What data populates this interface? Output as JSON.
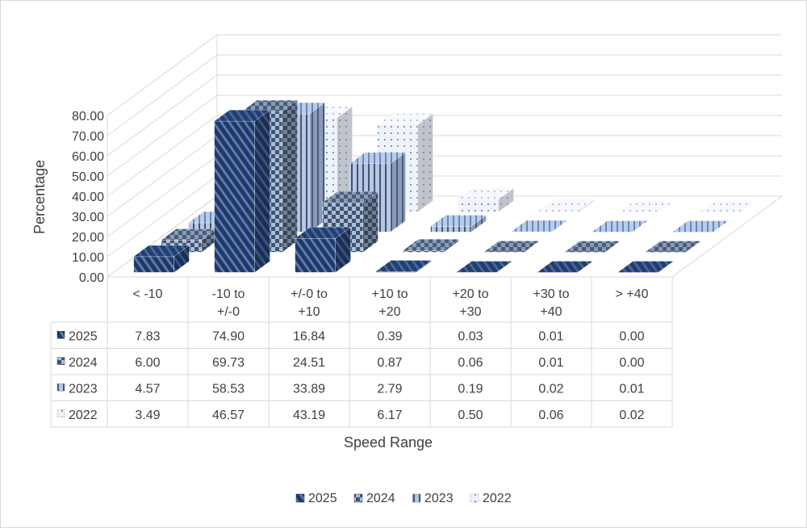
{
  "chart_data": {
    "type": "bar",
    "variant": "3d-column-with-data-table",
    "title": "",
    "xlabel": "Speed Range",
    "ylabel": "Percentage",
    "ylim": [
      0,
      80
    ],
    "yticks": [
      "0.00",
      "10.00",
      "20.00",
      "30.00",
      "40.00",
      "50.00",
      "60.00",
      "70.00",
      "80.00"
    ],
    "grid": true,
    "legend": "bottom",
    "categories": [
      [
        "< -10"
      ],
      [
        "-10 to",
        "+/-0"
      ],
      [
        "+/-0 to",
        "+10"
      ],
      [
        "+10 to",
        "+20"
      ],
      [
        "+20 to",
        "+30"
      ],
      [
        "+30 to",
        "+40"
      ],
      [
        "> +40"
      ]
    ],
    "series": [
      {
        "name": "2025",
        "color": "#1f3864",
        "pattern": "diagonal-stripes",
        "values": [
          7.83,
          74.9,
          16.84,
          0.39,
          0.03,
          0.01,
          0.0
        ],
        "labels": [
          "7.83",
          "74.90",
          "16.84",
          "0.39",
          "0.03",
          "0.01",
          "0.00"
        ]
      },
      {
        "name": "2024",
        "color": "#44546a",
        "pattern": "checkerboard",
        "values": [
          6.0,
          69.73,
          24.51,
          0.87,
          0.06,
          0.01,
          0.0
        ],
        "labels": [
          "6.00",
          "69.73",
          "24.51",
          "0.87",
          "0.06",
          "0.01",
          "0.00"
        ]
      },
      {
        "name": "2023",
        "color": "#8faadc",
        "pattern": "vertical-stripes",
        "values": [
          4.57,
          58.53,
          33.89,
          2.79,
          0.19,
          0.02,
          0.01
        ],
        "labels": [
          "4.57",
          "58.53",
          "33.89",
          "2.79",
          "0.19",
          "0.02",
          "0.01"
        ]
      },
      {
        "name": "2022",
        "color": "#dae3f3",
        "pattern": "dots",
        "values": [
          3.49,
          46.57,
          43.19,
          6.17,
          0.5,
          0.06,
          0.02
        ],
        "labels": [
          "3.49",
          "46.57",
          "43.19",
          "6.17",
          "0.50",
          "0.06",
          "0.02"
        ]
      }
    ]
  }
}
